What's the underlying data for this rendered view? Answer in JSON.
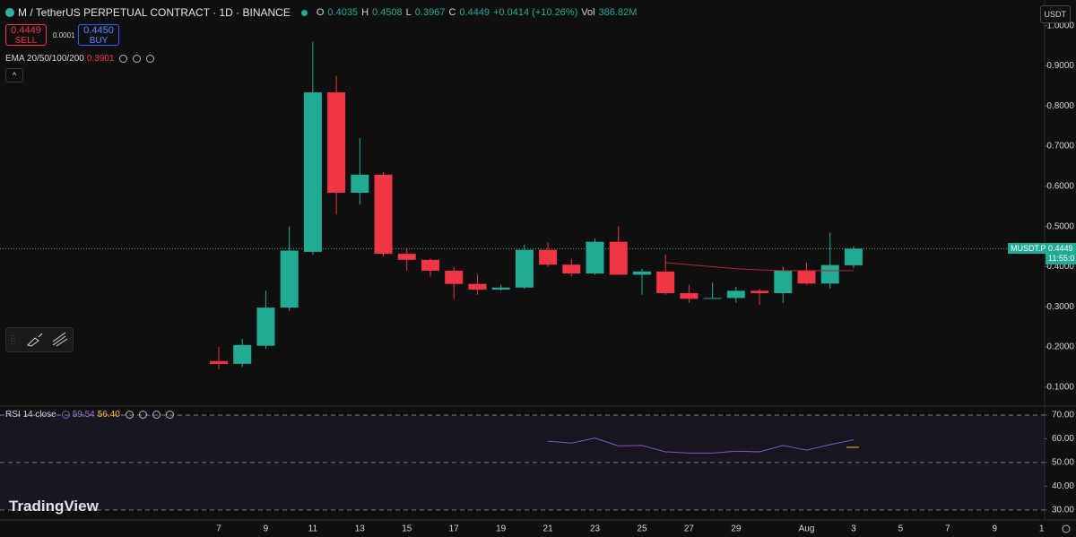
{
  "chart_data": [
    {
      "type": "candlestick",
      "title": "M / TetherUS PERPETUAL CONTRACT · 1D · BINANCE",
      "categories": [
        "7",
        null,
        "9",
        null,
        "11",
        null,
        "13",
        null,
        "15",
        null,
        "17",
        null,
        "19",
        null,
        "21",
        null,
        "23",
        null,
        "25",
        null,
        "27",
        null,
        "29",
        null,
        null,
        "Aug",
        null,
        "3",
        null,
        "5",
        null,
        "7",
        null,
        "9",
        null,
        "1"
      ],
      "open": [
        0.165,
        0.158,
        0.203,
        0.298,
        0.437,
        0.834,
        0.584,
        0.629,
        0.432,
        0.417,
        0.39,
        0.357,
        0.343,
        0.348,
        0.442,
        0.405,
        0.383,
        0.462,
        0.38,
        0.388,
        0.334,
        0.32,
        0.322,
        0.34,
        0.334,
        0.39,
        0.358,
        0.4035,
        null,
        null,
        null,
        null,
        null,
        null,
        null,
        null
      ],
      "high": [
        0.2,
        0.22,
        0.34,
        0.5,
        0.96,
        0.875,
        0.72,
        0.635,
        0.445,
        0.42,
        0.4,
        0.38,
        0.355,
        0.455,
        0.46,
        0.42,
        0.47,
        0.5,
        0.395,
        0.43,
        0.355,
        0.36,
        0.35,
        0.345,
        0.4,
        0.41,
        0.485,
        0.4508,
        null,
        null,
        null,
        null,
        null,
        null,
        null,
        null
      ],
      "low": [
        0.145,
        0.15,
        0.195,
        0.29,
        0.43,
        0.53,
        0.555,
        0.425,
        0.39,
        0.375,
        0.32,
        0.33,
        0.34,
        0.345,
        0.4,
        0.375,
        0.38,
        0.38,
        0.33,
        0.33,
        0.31,
        0.32,
        0.31,
        0.305,
        0.31,
        0.355,
        0.345,
        0.3967,
        null,
        null,
        null,
        null,
        null,
        null,
        null,
        null
      ],
      "close": [
        0.158,
        0.205,
        0.298,
        0.44,
        0.834,
        0.584,
        0.629,
        0.432,
        0.417,
        0.39,
        0.357,
        0.343,
        0.348,
        0.442,
        0.405,
        0.383,
        0.462,
        0.38,
        0.388,
        0.334,
        0.32,
        0.322,
        0.34,
        0.334,
        0.39,
        0.358,
        0.404,
        0.4449,
        null,
        null,
        null,
        null,
        null,
        null,
        null,
        null
      ],
      "up_color": "#22ab94",
      "down_color": "#f23645",
      "series": [
        {
          "name": "EMA 20/50/100/200",
          "color": "#b22833",
          "values": [
            null,
            null,
            null,
            null,
            null,
            null,
            null,
            null,
            null,
            null,
            null,
            null,
            null,
            null,
            null,
            null,
            null,
            null,
            null,
            0.41,
            0.405,
            0.4,
            0.395,
            0.392,
            0.39,
            0.39,
            0.39,
            0.3901,
            null,
            null,
            null,
            null,
            null,
            null,
            null,
            null
          ]
        }
      ],
      "ylim": [
        0.055,
        1.064
      ],
      "yticks": [
        {
          "value": 0.1,
          "label": "0.1000"
        },
        {
          "value": 0.2,
          "label": "0.2000"
        },
        {
          "value": 0.3,
          "label": "0.3000"
        },
        {
          "value": 0.4,
          "label": "0.4000"
        },
        {
          "value": 0.5,
          "label": "0.5000"
        },
        {
          "value": 0.6,
          "label": "0.6000"
        },
        {
          "value": 0.7,
          "label": "0.7000"
        },
        {
          "value": 0.8,
          "label": "0.8000"
        },
        {
          "value": 0.9,
          "label": "0.9000"
        },
        {
          "value": 1,
          "label": "1.0000"
        }
      ],
      "change": "+0.0414 (+10.26%)",
      "volume_label": "Vol",
      "volume": "386.82M",
      "ohlc_letters": [
        "O",
        "H",
        "L",
        "C"
      ],
      "symbol_tag": "MUSDT.P",
      "countdown": "11:55:0",
      "currency": "USDT"
    },
    {
      "type": "line",
      "title": "RSI 14 close",
      "values": [
        null,
        null,
        null,
        null,
        null,
        null,
        null,
        null,
        null,
        null,
        null,
        null,
        null,
        null,
        59,
        58.2,
        60.3,
        57,
        57.2,
        54.5,
        54,
        54,
        54.8,
        54.5,
        57.2,
        55.2,
        57.5,
        59.54,
        null,
        null,
        null,
        null,
        null,
        null,
        null,
        null
      ],
      "color": "#7e57c2",
      "ma_value": 56.4,
      "ma_value_label": "56.40",
      "ma_color": "#f7c325",
      "band": [
        30,
        70
      ],
      "ylim": [
        25.8,
        73
      ],
      "yticks": [
        {
          "value": 30,
          "label": "30.00"
        },
        {
          "value": 40,
          "label": "40.00"
        },
        {
          "value": 50,
          "label": "50.00"
        },
        {
          "value": 60,
          "label": "60.00"
        },
        {
          "value": 70,
          "label": "70.00"
        }
      ]
    }
  ],
  "trade": {
    "sell_price": "0.4449",
    "sell": "SELL",
    "spread": "0.0001",
    "buy_price": "0.4450",
    "buy": "BUY"
  },
  "branding": "TradingView"
}
